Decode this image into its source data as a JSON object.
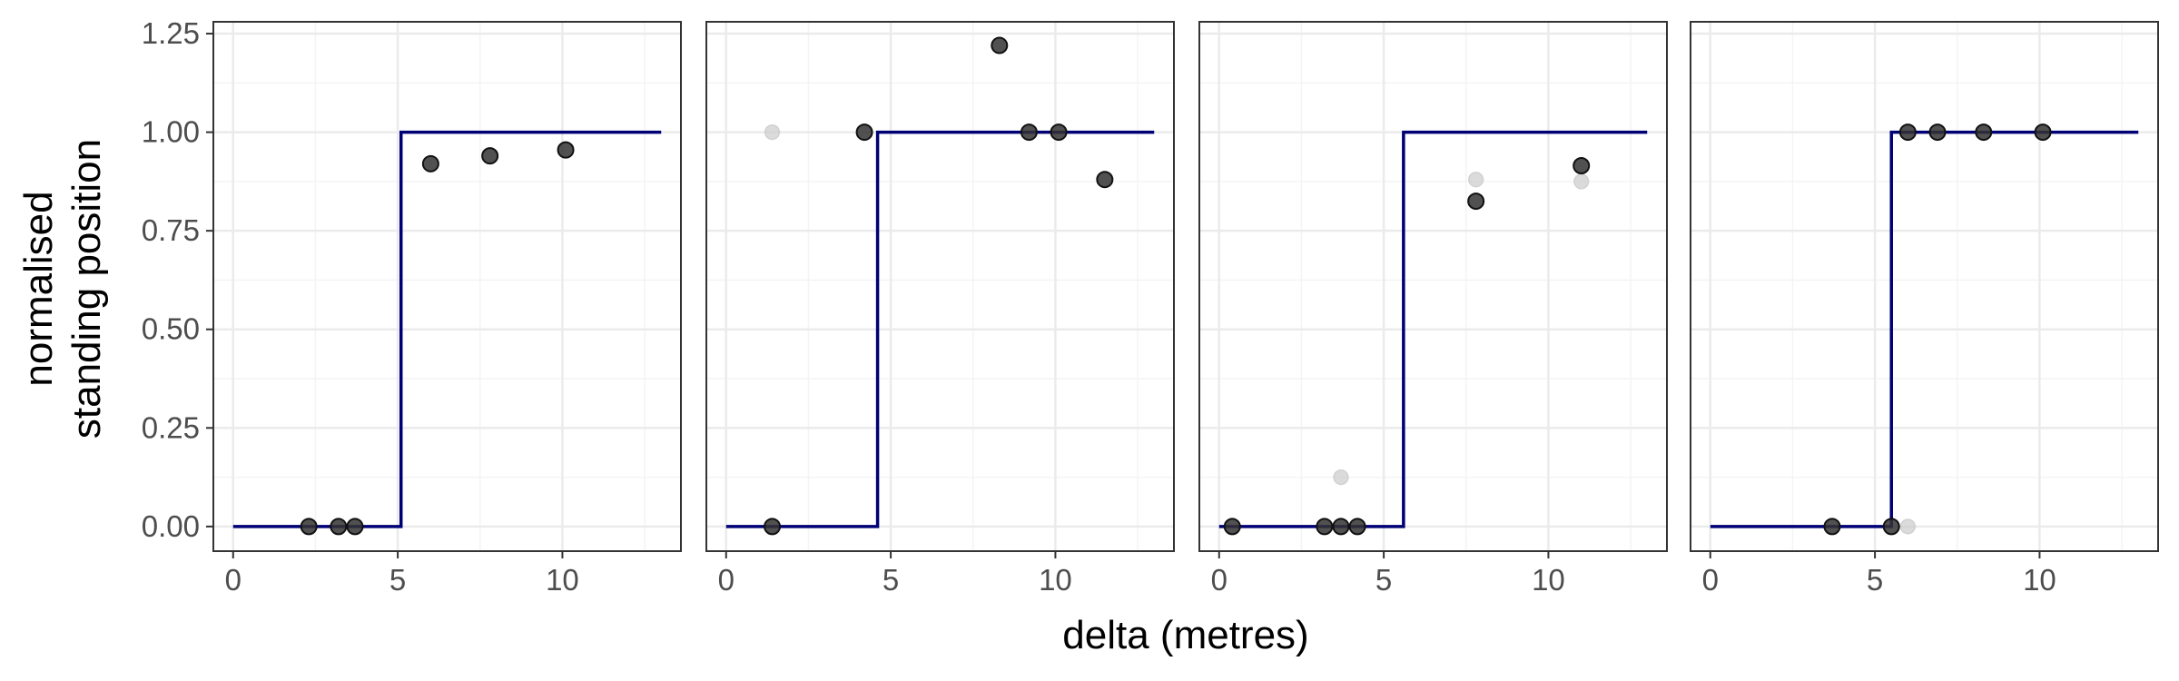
{
  "chart_data": {
    "type": "scatter",
    "xlabel": "delta (metres)",
    "ylabel_lines": [
      "normalised",
      "standing position"
    ],
    "xlim": [
      -0.6,
      13.6
    ],
    "ylim": [
      -0.0625,
      1.28
    ],
    "x_ticks": [
      0,
      5,
      10
    ],
    "x_tick_labels": [
      "0",
      "5",
      "10"
    ],
    "y_ticks": [
      0,
      0.25,
      0.5,
      0.75,
      1.0,
      1.25
    ],
    "y_tick_labels": [
      "0.00",
      "0.25",
      "0.50",
      "0.75",
      "1.00",
      "1.25"
    ],
    "grid": true,
    "colors": {
      "step_line": "#000075",
      "point": "#333333",
      "faded_point": "#cccccc",
      "grid_major": "#ebebeb",
      "grid_minor": "#f4f4f4",
      "panel_border": "#333333"
    },
    "panels": [
      {
        "step_x": 5.1,
        "step_range": [
          0,
          13
        ],
        "points": [
          {
            "x": 2.3,
            "y": 0.0
          },
          {
            "x": 3.2,
            "y": 0.0
          },
          {
            "x": 3.7,
            "y": 0.0
          },
          {
            "x": 6.0,
            "y": 0.92
          },
          {
            "x": 7.8,
            "y": 0.94
          },
          {
            "x": 10.1,
            "y": 0.955
          }
        ],
        "faded_points": []
      },
      {
        "step_x": 4.6,
        "step_range": [
          0,
          13
        ],
        "points": [
          {
            "x": 1.4,
            "y": 0.0
          },
          {
            "x": 4.2,
            "y": 1.0
          },
          {
            "x": 8.3,
            "y": 1.22
          },
          {
            "x": 9.2,
            "y": 1.0
          },
          {
            "x": 10.1,
            "y": 1.0
          },
          {
            "x": 11.5,
            "y": 0.88
          }
        ],
        "faded_points": [
          {
            "x": 1.4,
            "y": 1.0
          }
        ]
      },
      {
        "step_x": 5.6,
        "step_range": [
          0,
          13
        ],
        "points": [
          {
            "x": 0.4,
            "y": 0.0
          },
          {
            "x": 3.2,
            "y": 0.0
          },
          {
            "x": 3.7,
            "y": 0.0
          },
          {
            "x": 4.2,
            "y": 0.0
          },
          {
            "x": 7.8,
            "y": 0.825
          },
          {
            "x": 11.0,
            "y": 0.915
          }
        ],
        "faded_points": [
          {
            "x": 3.7,
            "y": 0.125
          },
          {
            "x": 7.8,
            "y": 0.88
          },
          {
            "x": 11.0,
            "y": 0.875
          }
        ]
      },
      {
        "step_x": 5.5,
        "step_range": [
          0,
          13
        ],
        "points": [
          {
            "x": 3.7,
            "y": 0.0
          },
          {
            "x": 5.5,
            "y": 0.0
          },
          {
            "x": 6.0,
            "y": 1.0
          },
          {
            "x": 6.9,
            "y": 1.0
          },
          {
            "x": 8.3,
            "y": 1.0
          },
          {
            "x": 10.1,
            "y": 1.0
          }
        ],
        "faded_points": [
          {
            "x": 6.0,
            "y": 0.0
          }
        ]
      }
    ]
  }
}
